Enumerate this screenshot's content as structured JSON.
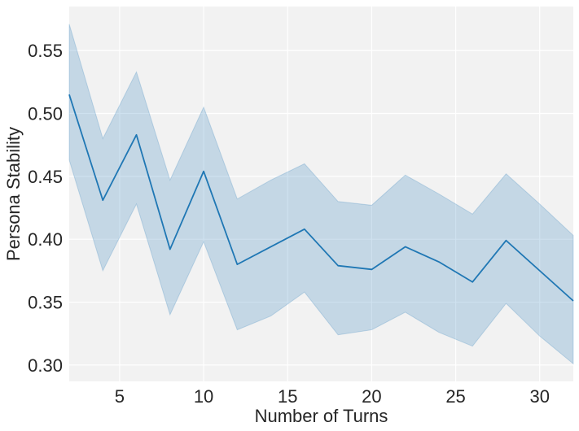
{
  "chart_data": {
    "type": "line",
    "xlabel": "Number of Turns",
    "ylabel": "Persona Stability",
    "xlim": [
      2,
      32
    ],
    "ylim": [
      0.287,
      0.585
    ],
    "x_ticks": [
      5,
      10,
      15,
      20,
      25,
      30
    ],
    "x_tick_labels": [
      "5",
      "10",
      "15",
      "20",
      "25",
      "30"
    ],
    "y_ticks": [
      0.3,
      0.35,
      0.4,
      0.45,
      0.5,
      0.55
    ],
    "y_tick_labels": [
      "0.30",
      "0.35",
      "0.40",
      "0.45",
      "0.50",
      "0.55"
    ],
    "grid": true,
    "legend": "none",
    "colors": {
      "line": "#1f77b4",
      "band": "#1f77b4",
      "plot_background": "#f2f2f2",
      "grid": "#ffffff"
    },
    "series": [
      {
        "x": [
          2,
          4,
          6,
          8,
          10,
          12,
          14,
          16,
          18,
          20,
          22,
          24,
          26,
          28,
          30,
          32
        ],
        "values": [
          0.515,
          0.431,
          0.483,
          0.392,
          0.454,
          0.38,
          0.394,
          0.408,
          0.379,
          0.376,
          0.394,
          0.382,
          0.366,
          0.399,
          0.375,
          0.351
        ],
        "ci_lower": [
          0.463,
          0.375,
          0.428,
          0.34,
          0.398,
          0.328,
          0.339,
          0.358,
          0.324,
          0.328,
          0.342,
          0.326,
          0.315,
          0.349,
          0.323,
          0.301
        ],
        "ci_upper": [
          0.571,
          0.48,
          0.533,
          0.447,
          0.505,
          0.432,
          0.447,
          0.46,
          0.43,
          0.427,
          0.451,
          0.436,
          0.42,
          0.452,
          0.428,
          0.403
        ]
      }
    ]
  }
}
